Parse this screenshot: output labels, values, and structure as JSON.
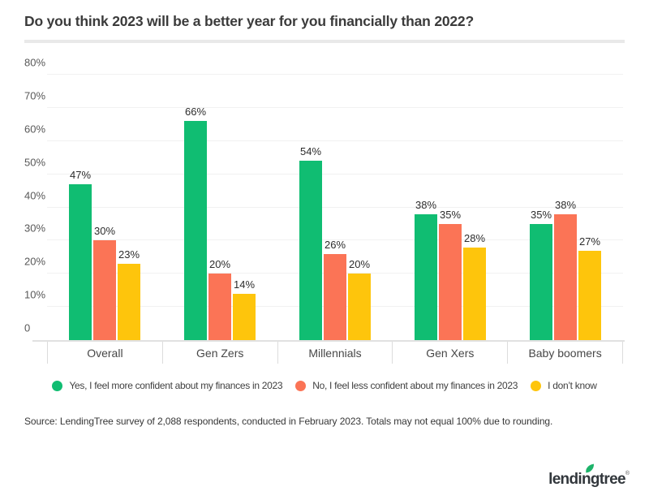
{
  "page": {
    "title": "Do you think 2023 will be a better year for you financially than 2022?",
    "source": "Source: LendingTree survey of 2,088 respondents, conducted in February 2023. Totals may not equal 100% due to rounding.",
    "logo_text": "lendingtree",
    "logo_reg": "®"
  },
  "colors": {
    "green": "#10bd72",
    "orange": "#fb7456",
    "yellow": "#fec50c",
    "gridline": "#f1f1f1",
    "baseline": "#e1e1e1",
    "title_text": "#3b3b3b",
    "logo_leaf": "#1db36a"
  },
  "chart_data": {
    "type": "bar",
    "title": "Do you think 2023 will be a better year for you financially than 2022?",
    "categories": [
      "Overall",
      "Gen Zers",
      "Millennials",
      "Gen Xers",
      "Baby boomers"
    ],
    "series": [
      {
        "name": "Yes, I feel more confident about my finances in 2023",
        "color": "#10bd72",
        "values": [
          47,
          66,
          54,
          38,
          35
        ]
      },
      {
        "name": "No, I feel less confident about my finances in 2023",
        "color": "#fb7456",
        "values": [
          30,
          20,
          26,
          35,
          38
        ]
      },
      {
        "name": "I don’t know",
        "color": "#fec50c",
        "values": [
          23,
          14,
          20,
          28,
          27
        ]
      }
    ],
    "xlabel": "",
    "ylabel": "",
    "ylim": [
      0,
      80
    ],
    "yticks": [
      {
        "value": 80,
        "label": "80%"
      },
      {
        "value": 70,
        "label": "70%"
      },
      {
        "value": 60,
        "label": "60%"
      },
      {
        "value": 50,
        "label": "50%"
      },
      {
        "value": 40,
        "label": "40%"
      },
      {
        "value": 30,
        "label": "30%"
      },
      {
        "value": 20,
        "label": "20%"
      },
      {
        "value": 10,
        "label": "10%"
      },
      {
        "value": 0,
        "label": "0"
      }
    ],
    "value_suffix": "%",
    "grid": true,
    "legend_position": "bottom"
  }
}
